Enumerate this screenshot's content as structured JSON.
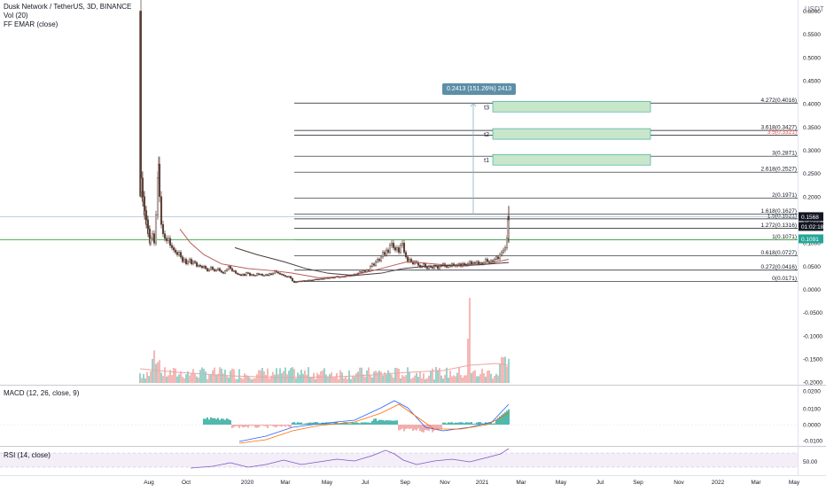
{
  "header": {
    "title": "Dusk Network / TetherUS, 3D, BINANCE",
    "vol": "Vol (20)",
    "ema": "FF EMAR (close)",
    "currency": "USDT"
  },
  "panes": {
    "macd_label": "MACD (12, 26, close, 9)",
    "rsi_label": "RSI (14, close)"
  },
  "price_scale": [
    "0.6000",
    "0.5500",
    "0.5000",
    "0.4500",
    "0.4000",
    "0.3500",
    "0.3000",
    "0.2500",
    "0.2000",
    "0.1500",
    "0.1000",
    "0.0500",
    "0.0000",
    "-0.0500",
    "-0.1000",
    "-0.1500",
    "-0.2000"
  ],
  "macd_scale": [
    "0.0200",
    "0.0100",
    "0.0000",
    "-0.0100"
  ],
  "rsi_scale": [
    "50.00"
  ],
  "time_axis": [
    "Aug",
    "Oct",
    "2020",
    "Mar",
    "May",
    "Jul",
    "Sep",
    "Nov",
    "2021",
    "Mar",
    "May",
    "Jul",
    "Sep",
    "Nov",
    "2022",
    "Mar",
    "May"
  ],
  "price_tags": {
    "last": "0.1568",
    "countdown": "01:02:18",
    "level": "0.1091"
  },
  "fib_levels": [
    {
      "label": "4.272(0.4016)"
    },
    {
      "label": "3.618(0.3427)"
    },
    {
      "label": "3.5(0.3321)"
    },
    {
      "label": "3(0.2871)"
    },
    {
      "label": "2.618(0.2527)"
    },
    {
      "label": "2(0.1971)"
    },
    {
      "label": "1.618(0.1627)"
    },
    {
      "label": "1.5(0.1521)"
    },
    {
      "label": "1.272(0.1316)"
    },
    {
      "label": "1(0.1071)"
    },
    {
      "label": "0.618(0.0727)"
    },
    {
      "label": "0.272(0.0416)"
    },
    {
      "label": "0(0.0171)"
    }
  ],
  "targets": [
    {
      "label": "t3"
    },
    {
      "label": "t2"
    },
    {
      "label": "t1"
    }
  ],
  "measure_tooltip": "0.2413 (151.26%) 2413",
  "colors": {
    "up": "#26a69a",
    "down": "#ef5350",
    "ema": "#b85c5c",
    "green_line": "#4caf50",
    "tag_blue": "#2962ff",
    "tag_green": "#26a69a",
    "tag_dark": "#131722",
    "target_box": "#c8e6c9"
  }
}
